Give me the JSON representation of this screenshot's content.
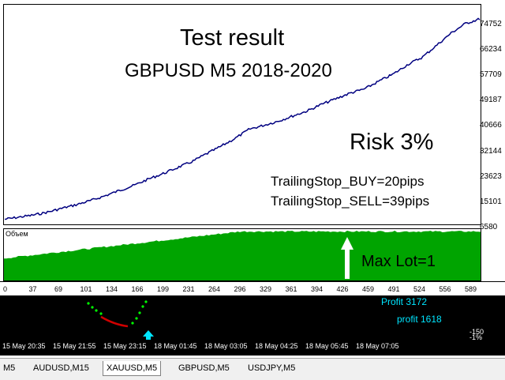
{
  "chart_data": {
    "type": "line",
    "series": [
      {
        "values": [
          9100,
          9800,
          10500,
          11500,
          12800,
          14000,
          15400,
          17000,
          18800,
          20500,
          22600,
          24400,
          26400,
          28400,
          31000,
          33500,
          36200,
          39300,
          40600,
          42000,
          43700,
          45400,
          47600,
          49500,
          51400,
          52800,
          55400,
          57800,
          61000,
          63400,
          67400,
          71500,
          74700,
          76300
        ]
      }
    ],
    "yticks": [
      "74752",
      "66234",
      "57709",
      "49187",
      "40666",
      "32144",
      "23623",
      "15101",
      "6580"
    ],
    "ylim": [
      6580,
      76000
    ],
    "xticks": [
      "0",
      "37",
      "69",
      "101",
      "134",
      "166",
      "199",
      "231",
      "264",
      "296",
      "329",
      "361",
      "394",
      "426",
      "459",
      "491",
      "524",
      "556",
      "589"
    ]
  },
  "annotations": {
    "title": "Test result",
    "subtitle": "GBPUSD M5    2018-2020",
    "risk": "Risk 3%",
    "trailing_buy": "TrailingStop_BUY=20pips",
    "trailing_sell": "TrailingStop_SELL=39pips",
    "max_lot": "Max Lot=1"
  },
  "volume_panel": {
    "title": "Объем"
  },
  "lower_chart": {
    "profit_top": "Profit 3172",
    "profit": "profit 1618",
    "price_right": "-150",
    "price_right2": "-1%"
  },
  "time_axis": [
    "15 May 20:35",
    "15 May 21:55",
    "15 May 23:15",
    "18 May 01:45",
    "18 May 03:05",
    "18 May 04:25",
    "18 May 05:45",
    "18 May 07:05"
  ],
  "tabs": [
    {
      "label": "M5"
    },
    {
      "label": "AUDUSD,M15"
    },
    {
      "label": "XAUUSD,M5"
    },
    {
      "label": "GBPUSD,M5"
    },
    {
      "label": "USDJPY,M5"
    }
  ],
  "colors": {
    "equity_line": "#000080",
    "volume_fill": "#00a400",
    "lower_bg": "#000000",
    "dots_green": "#00ff00",
    "dots_red": "#d00000",
    "cyan": "#00e5ff"
  }
}
